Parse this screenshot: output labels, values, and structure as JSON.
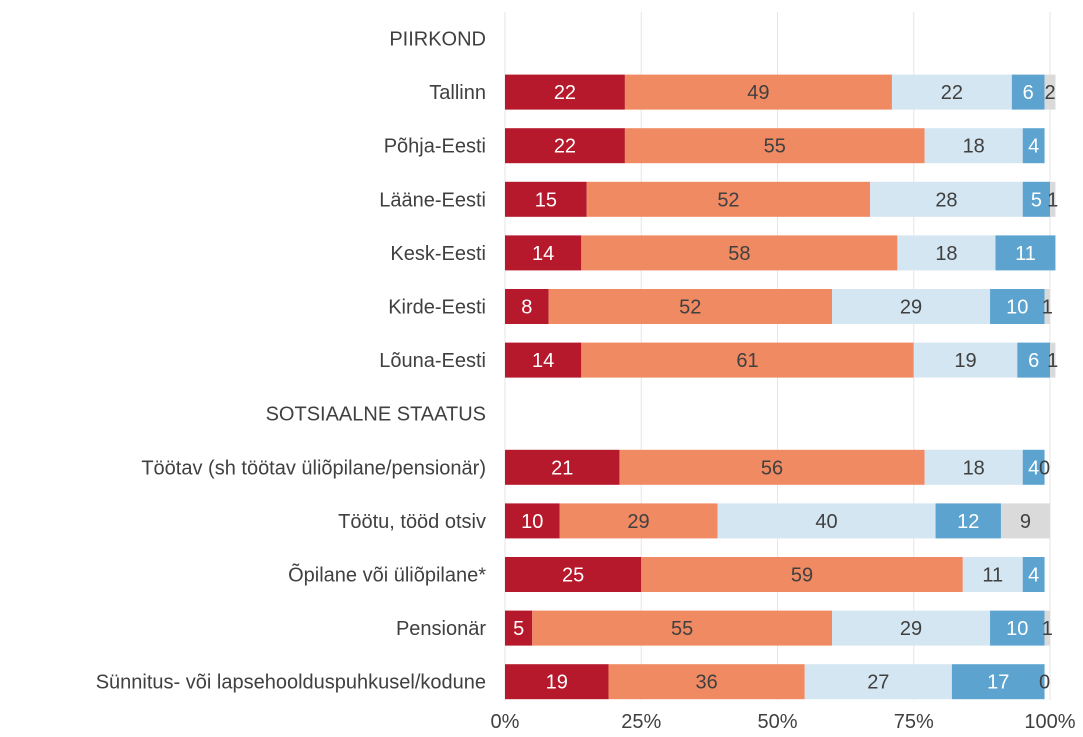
{
  "chart_data": {
    "type": "bar",
    "orientation": "horizontal",
    "stacked": true,
    "percent": true,
    "xlim": [
      0,
      100
    ],
    "ticks": [
      "0%",
      "25%",
      "50%",
      "75%",
      "100%"
    ],
    "tick_values": [
      0,
      25,
      50,
      75,
      100
    ],
    "grid": true,
    "colors": [
      "#b5192b",
      "#f08a62",
      "#d4e6f1",
      "#5ca3d0",
      "#dadada"
    ],
    "rows": [
      {
        "label": "PIIRKOND",
        "header": true
      },
      {
        "label": "Tallinn",
        "values": [
          22,
          49,
          22,
          6,
          2
        ]
      },
      {
        "label": "Põhja-Eesti",
        "values": [
          22,
          55,
          18,
          4,
          null
        ]
      },
      {
        "label": "Lääne-Eesti",
        "values": [
          15,
          52,
          28,
          5,
          1
        ]
      },
      {
        "label": "Kesk-Eesti",
        "values": [
          14,
          58,
          18,
          11,
          null
        ]
      },
      {
        "label": "Kirde-Eesti",
        "values": [
          8,
          52,
          29,
          10,
          1
        ]
      },
      {
        "label": "Lõuna-Eesti",
        "values": [
          14,
          61,
          19,
          6,
          1
        ]
      },
      {
        "label": "SOTSIAALNE STAATUS",
        "header": true
      },
      {
        "label": "Töötav (sh töötav üliõpilane/pensionär)",
        "values": [
          21,
          56,
          18,
          4,
          0
        ]
      },
      {
        "label": "Töötu, tööd otsiv",
        "values": [
          10,
          29,
          40,
          12,
          9
        ]
      },
      {
        "label": "Õpilane või üliõpilane*",
        "values": [
          25,
          59,
          11,
          4,
          null
        ]
      },
      {
        "label": "Pensionär",
        "values": [
          5,
          55,
          29,
          10,
          1
        ]
      },
      {
        "label": "Sünnitus- või lapsehoolduspuhkusel/kodune",
        "values": [
          19,
          36,
          27,
          17,
          0
        ]
      }
    ]
  }
}
